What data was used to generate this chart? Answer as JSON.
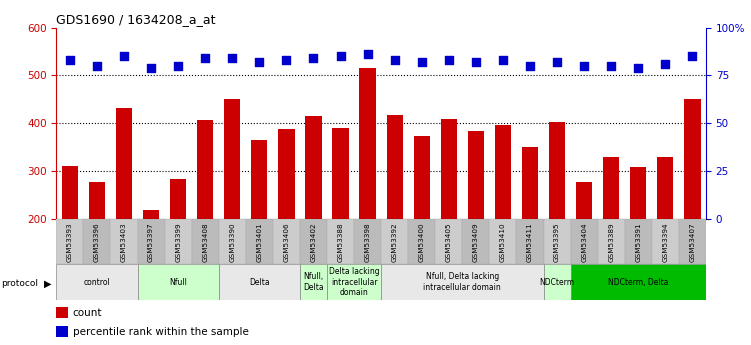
{
  "title": "GDS1690 / 1634208_a_at",
  "samples": [
    "GSM53393",
    "GSM53396",
    "GSM53403",
    "GSM53397",
    "GSM53399",
    "GSM53408",
    "GSM53390",
    "GSM53401",
    "GSM53406",
    "GSM53402",
    "GSM53388",
    "GSM53398",
    "GSM53392",
    "GSM53400",
    "GSM53405",
    "GSM53409",
    "GSM53410",
    "GSM53411",
    "GSM53395",
    "GSM53404",
    "GSM53389",
    "GSM53391",
    "GSM53394",
    "GSM53407"
  ],
  "counts": [
    310,
    278,
    432,
    218,
    283,
    408,
    450,
    365,
    388,
    415,
    390,
    515,
    418,
    373,
    410,
    383,
    397,
    350,
    403,
    278,
    330,
    308,
    330,
    450
  ],
  "percentiles": [
    83,
    80,
    85,
    79,
    80,
    84,
    84,
    82,
    83,
    84,
    85,
    86,
    83,
    82,
    83,
    82,
    83,
    80,
    82,
    80,
    80,
    79,
    81,
    85
  ],
  "bar_color": "#cc0000",
  "dot_color": "#0000cc",
  "ylim_left": [
    200,
    600
  ],
  "ylim_right": [
    0,
    100
  ],
  "yticks_left": [
    200,
    300,
    400,
    500,
    600
  ],
  "yticks_right": [
    0,
    25,
    50,
    75,
    100
  ],
  "ytick_right_labels": [
    "0",
    "25",
    "50",
    "75",
    "100%"
  ],
  "grid_lines": [
    300,
    400,
    500
  ],
  "protocols": [
    {
      "label": "control",
      "start": 0,
      "end": 3,
      "color": "#e8e8e8"
    },
    {
      "label": "Nfull",
      "start": 3,
      "end": 6,
      "color": "#ccffcc"
    },
    {
      "label": "Delta",
      "start": 6,
      "end": 9,
      "color": "#e8e8e8"
    },
    {
      "label": "Nfull,\nDelta",
      "start": 9,
      "end": 10,
      "color": "#ccffcc"
    },
    {
      "label": "Delta lacking\nintracellular\ndomain",
      "start": 10,
      "end": 12,
      "color": "#ccffcc"
    },
    {
      "label": "Nfull, Delta lacking\nintracellular domain",
      "start": 12,
      "end": 18,
      "color": "#e8e8e8"
    },
    {
      "label": "NDCterm",
      "start": 18,
      "end": 19,
      "color": "#ccffcc"
    },
    {
      "label": "NDCterm, Delta",
      "start": 19,
      "end": 24,
      "color": "#00bb00"
    }
  ],
  "bar_width": 0.6,
  "dot_size": 40,
  "dot_marker": "s",
  "legend_count_label": "count",
  "legend_pct_label": "percentile rank within the sample",
  "background_color": "#ffffff",
  "tick_color_left": "#cc0000",
  "tick_color_right": "#0000cc"
}
